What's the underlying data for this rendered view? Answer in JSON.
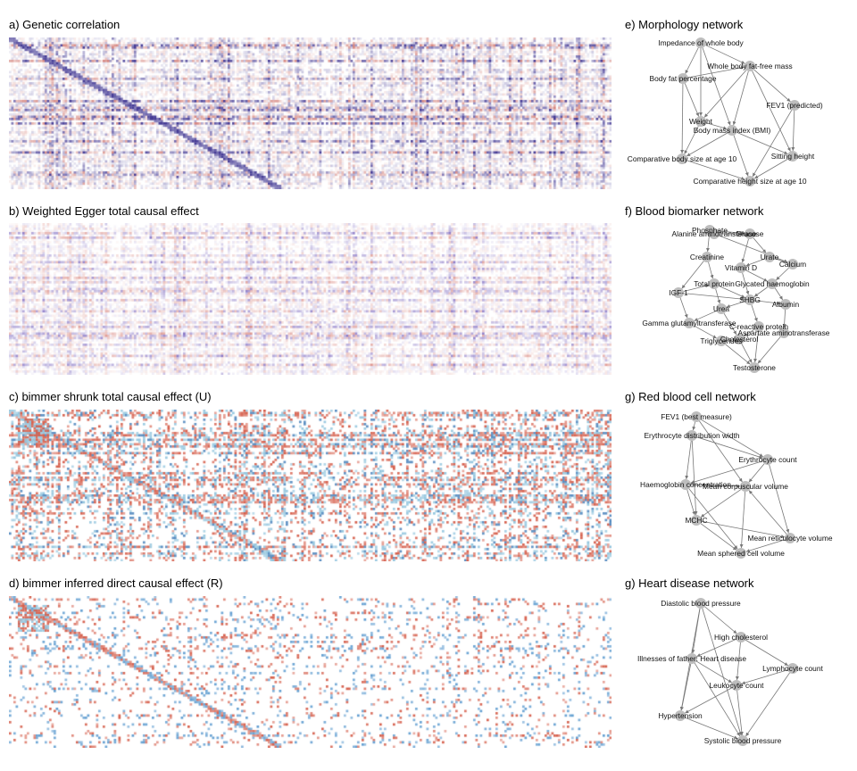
{
  "panels": {
    "a": {
      "title": "a) Genetic correlation"
    },
    "b": {
      "title": "b) Weighted Egger total causal effect"
    },
    "c": {
      "title": "c) bimmer shrunk total causal effect (U)"
    },
    "d": {
      "title": "d) bimmer inferred direct causal effect (R)"
    },
    "e": {
      "title": "e) Morphology network",
      "nodes": [
        "Impedance of whole body",
        "Whole body fat-free mass",
        "Body fat percentage",
        "FEV1 (predicted)",
        "Weight",
        "Body mass index (BMI)",
        "Comparative body size at age 10",
        "Sitting height",
        "Comparative height size at age 10"
      ]
    },
    "f": {
      "title": "f) Blood biomarker network",
      "nodes": [
        "Phosphate",
        "Alanine aminotransferase",
        "Glucose",
        "Creatinine",
        "Urate",
        "Vitamin D",
        "Calcium",
        "Total protein",
        "Glycated haemoglobin",
        "IGF-1",
        "SHBG",
        "Albumin",
        "Urea",
        "Gamma glutamyltransferase",
        "C-reactive protein",
        "Aspartate aminotransferase",
        "Triglycerides",
        "Cholesterol",
        "Testosterone"
      ]
    },
    "g1": {
      "title": "g) Red blood cell network",
      "nodes": [
        "FEV1 (best measure)",
        "Erythrocyte distribution width",
        "Erythrocyte count",
        "Haemoglobin concentration",
        "Mean corpuscular volume",
        "MCHC",
        "Mean reticulocyte volume",
        "Mean sphered cell volume"
      ]
    },
    "g2": {
      "title": "g) Heart disease network",
      "nodes": [
        "Diastolic blood pressure",
        "High cholesterol",
        "Illnesses of father: Heart disease",
        "Lymphocyte count",
        "Leukocyte count",
        "Hypertension",
        "Systolic blood pressure"
      ]
    }
  },
  "colors": {
    "red": "#d6604d",
    "blue": "#4393c3",
    "purple": "#5e4fa2",
    "lightblue": "#92c5de",
    "node": "#bdbdbd",
    "edge": "#777777"
  }
}
